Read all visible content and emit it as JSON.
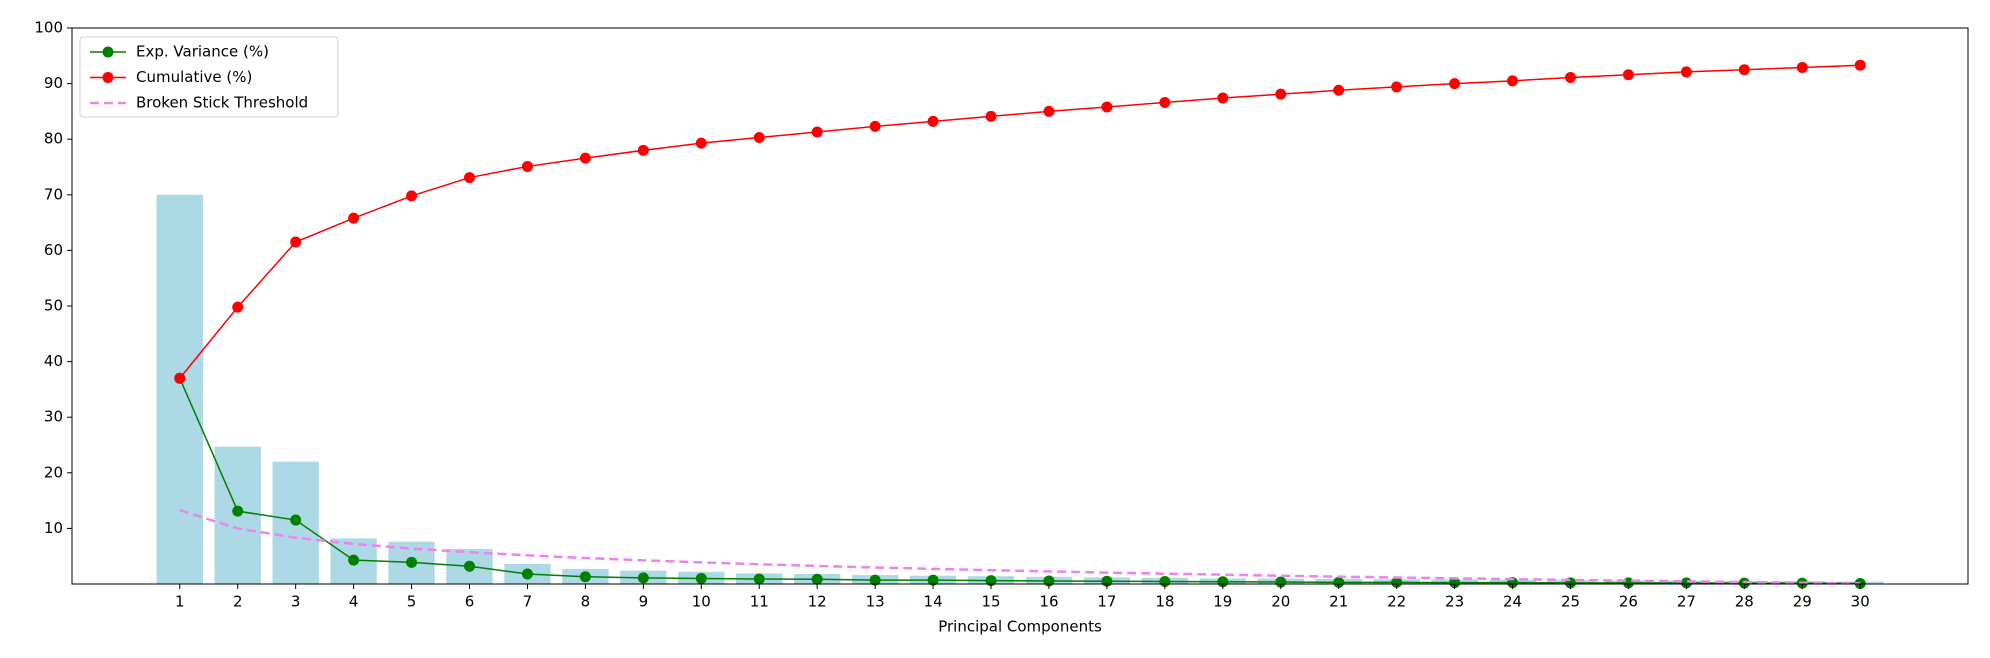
{
  "chart_data": {
    "type": "pca",
    "xlabel": "Principal Components",
    "x": [
      1,
      2,
      3,
      4,
      5,
      6,
      7,
      8,
      9,
      10,
      11,
      12,
      13,
      14,
      15,
      16,
      17,
      18,
      19,
      20,
      21,
      22,
      23,
      24,
      25,
      26,
      27,
      28,
      29,
      30
    ],
    "bars": {
      "color": "#add8e6",
      "values": [
        70,
        24.7,
        22,
        8.2,
        7.6,
        6.3,
        3.6,
        2.7,
        2.4,
        2.2,
        1.9,
        1.8,
        1.6,
        1.5,
        1.4,
        1.3,
        1.2,
        1.1,
        1.0,
        0.95,
        0.9,
        0.85,
        0.8,
        0.75,
        0.7,
        0.65,
        0.6,
        0.55,
        0.5,
        0.45
      ]
    },
    "series": [
      {
        "name": "Exp. Variance (%)",
        "color": "green",
        "marker": true,
        "dashed": false,
        "values": [
          37,
          13.1,
          11.5,
          4.3,
          3.9,
          3.2,
          1.8,
          1.3,
          1.1,
          1.0,
          0.9,
          0.85,
          0.7,
          0.7,
          0.6,
          0.55,
          0.5,
          0.45,
          0.4,
          0.35,
          0.3,
          0.3,
          0.25,
          0.25,
          0.2,
          0.2,
          0.2,
          0.15,
          0.15,
          0.1
        ]
      },
      {
        "name": "Cumulative (%)",
        "color": "red",
        "marker": true,
        "dashed": false,
        "values": [
          37,
          49.8,
          61.5,
          65.8,
          69.8,
          73.1,
          75.1,
          76.6,
          78,
          79.3,
          80.3,
          81.3,
          82.3,
          83.2,
          84.1,
          85,
          85.8,
          86.6,
          87.4,
          88.1,
          88.8,
          89.4,
          90,
          90.5,
          91.1,
          91.6,
          92.1,
          92.5,
          92.9,
          93.3
        ]
      },
      {
        "name": "Broken Stick Threshold",
        "color": "violet",
        "marker": false,
        "dashed": true,
        "values": [
          13.3,
          9.98,
          8.32,
          7.21,
          6.37,
          5.71,
          5.15,
          4.67,
          4.26,
          3.89,
          3.55,
          3.25,
          2.97,
          2.72,
          2.48,
          2.26,
          2.05,
          1.85,
          1.67,
          1.49,
          1.32,
          1.17,
          1.01,
          0.87,
          0.73,
          0.6,
          0.47,
          0.35,
          0.23,
          0.11
        ]
      }
    ],
    "xlim": [
      -0.86,
      31.86
    ],
    "xticks": [
      1,
      2,
      3,
      4,
      5,
      6,
      7,
      8,
      9,
      10,
      11,
      12,
      13,
      14,
      15,
      16,
      17,
      18,
      19,
      20,
      21,
      22,
      23,
      24,
      25,
      26,
      27,
      28,
      29,
      30
    ],
    "ylim": [
      0,
      100
    ],
    "yticks": [
      10,
      20,
      30,
      40,
      50,
      60,
      70,
      80,
      90,
      100
    ],
    "legend": "upper left"
  }
}
